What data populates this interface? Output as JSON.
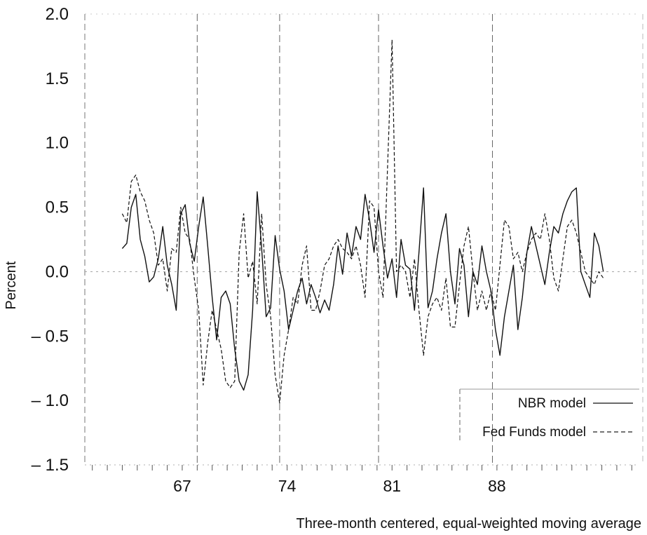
{
  "chart_data": {
    "type": "line",
    "title": "",
    "ylabel": "Percent",
    "xlabel": "Three-month centered, equal-weighted moving average",
    "xlim": [
      1960.5,
      1997.5
    ],
    "ylim": [
      -1.5,
      2.0
    ],
    "x_ticks": [
      {
        "value": 1967,
        "label": "67"
      },
      {
        "value": 1974,
        "label": "74"
      },
      {
        "value": 1981,
        "label": "81"
      },
      {
        "value": 1988,
        "label": "88"
      }
    ],
    "y_ticks": [
      {
        "value": 2.0,
        "label": "2.0"
      },
      {
        "value": 1.5,
        "label": "1.5"
      },
      {
        "value": 1.0,
        "label": "1.0"
      },
      {
        "value": 0.5,
        "label": "0.5"
      },
      {
        "value": 0.0,
        "label": "0.0"
      },
      {
        "value": -0.5,
        "label": "– 0.5"
      },
      {
        "value": -1.0,
        "label": "– 1.0"
      },
      {
        "value": -1.5,
        "label": "– 1.5"
      }
    ],
    "vertical_lines": [
      1968.0,
      1973.5,
      1980.1,
      1987.7
    ],
    "legend_position": "bottom-right",
    "series": [
      {
        "name": "NBR model",
        "style": "solid",
        "x": [
          1963.0,
          1963.3,
          1963.6,
          1963.9,
          1964.2,
          1964.5,
          1964.8,
          1965.1,
          1965.4,
          1965.7,
          1966.0,
          1966.3,
          1966.6,
          1966.9,
          1967.2,
          1967.5,
          1967.8,
          1968.1,
          1968.4,
          1968.7,
          1969.0,
          1969.3,
          1969.6,
          1969.9,
          1970.2,
          1970.5,
          1970.8,
          1971.1,
          1971.4,
          1971.7,
          1972.0,
          1972.3,
          1972.6,
          1972.9,
          1973.2,
          1973.5,
          1973.8,
          1974.1,
          1974.4,
          1974.7,
          1975.0,
          1975.3,
          1975.6,
          1975.9,
          1976.2,
          1976.5,
          1976.8,
          1977.1,
          1977.4,
          1977.7,
          1978.0,
          1978.3,
          1978.6,
          1978.9,
          1979.2,
          1979.5,
          1979.8,
          1980.1,
          1980.4,
          1980.7,
          1981.0,
          1981.3,
          1981.6,
          1981.9,
          1982.2,
          1982.5,
          1982.8,
          1983.1,
          1983.4,
          1983.7,
          1984.0,
          1984.3,
          1984.6,
          1984.9,
          1985.2,
          1985.5,
          1985.8,
          1986.1,
          1986.4,
          1986.7,
          1987.0,
          1987.3,
          1987.6,
          1987.9,
          1988.2,
          1988.5,
          1988.8,
          1989.1,
          1989.4,
          1989.7,
          1990.0,
          1990.3,
          1990.6,
          1990.9,
          1991.2,
          1991.5,
          1991.8,
          1992.1,
          1992.4,
          1992.7,
          1993.0,
          1993.3,
          1993.6,
          1993.9,
          1994.2,
          1994.5,
          1994.8,
          1995.1
        ],
        "values": [
          0.18,
          0.22,
          0.5,
          0.6,
          0.25,
          0.12,
          -0.08,
          -0.04,
          0.1,
          0.35,
          0.05,
          -0.1,
          -0.3,
          0.45,
          0.52,
          0.22,
          0.08,
          0.35,
          0.58,
          0.2,
          -0.2,
          -0.53,
          -0.2,
          -0.15,
          -0.25,
          -0.6,
          -0.85,
          -0.92,
          -0.8,
          -0.3,
          0.62,
          0.18,
          -0.35,
          -0.28,
          0.28,
          0.02,
          -0.15,
          -0.45,
          -0.3,
          -0.15,
          -0.05,
          -0.25,
          -0.1,
          -0.2,
          -0.32,
          -0.22,
          -0.3,
          -0.1,
          0.2,
          -0.02,
          0.3,
          0.12,
          0.35,
          0.25,
          0.6,
          0.4,
          0.15,
          0.48,
          0.2,
          -0.05,
          0.1,
          -0.2,
          0.25,
          0.05,
          0.02,
          -0.3,
          0.15,
          0.65,
          -0.28,
          -0.15,
          0.1,
          0.3,
          0.45,
          0.0,
          -0.25,
          0.18,
          0.05,
          -0.35,
          0.0,
          -0.1,
          0.2,
          0.0,
          -0.15,
          -0.45,
          -0.65,
          -0.35,
          -0.15,
          0.05,
          -0.45,
          -0.2,
          0.15,
          0.35,
          0.2,
          0.05,
          -0.1,
          0.15,
          0.35,
          0.3,
          0.45,
          0.55,
          0.62,
          0.65,
          0.0,
          -0.1,
          -0.2,
          0.3,
          0.2,
          0.0
        ]
      },
      {
        "name": "Fed Funds model",
        "style": "dashed",
        "x": [
          1963.0,
          1963.3,
          1963.6,
          1963.9,
          1964.2,
          1964.5,
          1964.8,
          1965.1,
          1965.4,
          1965.7,
          1966.0,
          1966.3,
          1966.6,
          1966.9,
          1967.2,
          1967.5,
          1967.8,
          1968.1,
          1968.4,
          1968.7,
          1969.0,
          1969.3,
          1969.6,
          1969.9,
          1970.2,
          1970.5,
          1970.8,
          1971.1,
          1971.4,
          1971.7,
          1972.0,
          1972.3,
          1972.6,
          1972.9,
          1973.2,
          1973.5,
          1973.8,
          1974.1,
          1974.4,
          1974.7,
          1975.0,
          1975.3,
          1975.6,
          1975.9,
          1976.2,
          1976.5,
          1976.8,
          1977.1,
          1977.4,
          1977.7,
          1978.0,
          1978.3,
          1978.6,
          1978.9,
          1979.2,
          1979.5,
          1979.8,
          1980.1,
          1980.4,
          1980.7,
          1981.0,
          1981.3,
          1981.6,
          1981.9,
          1982.2,
          1982.5,
          1982.8,
          1983.1,
          1983.4,
          1983.7,
          1984.0,
          1984.3,
          1984.6,
          1984.9,
          1985.2,
          1985.5,
          1985.8,
          1986.1,
          1986.4,
          1986.7,
          1987.0,
          1987.3,
          1987.6,
          1987.9,
          1988.2,
          1988.5,
          1988.8,
          1989.1,
          1989.4,
          1989.7,
          1990.0,
          1990.3,
          1990.6,
          1990.9,
          1991.2,
          1991.5,
          1991.8,
          1992.1,
          1992.4,
          1992.7,
          1993.0,
          1993.3,
          1993.6,
          1993.9,
          1994.2,
          1994.5,
          1994.8,
          1995.1
        ],
        "values": [
          0.45,
          0.38,
          0.7,
          0.75,
          0.62,
          0.55,
          0.4,
          0.3,
          0.05,
          0.1,
          -0.15,
          0.18,
          0.15,
          0.5,
          0.3,
          0.25,
          -0.05,
          -0.3,
          -0.88,
          -0.55,
          -0.3,
          -0.45,
          -0.6,
          -0.85,
          -0.9,
          -0.85,
          0.15,
          0.45,
          -0.05,
          0.08,
          -0.25,
          0.45,
          -0.1,
          -0.35,
          -0.8,
          -1.02,
          -0.65,
          -0.45,
          -0.2,
          -0.25,
          0.05,
          0.2,
          -0.3,
          -0.3,
          -0.15,
          0.05,
          0.1,
          0.2,
          0.25,
          0.18,
          0.15,
          0.1,
          0.2,
          0.05,
          -0.2,
          0.55,
          0.5,
          0.0,
          -0.2,
          0.8,
          1.8,
          0.0,
          0.05,
          0.0,
          -0.2,
          0.1,
          -0.3,
          -0.65,
          -0.35,
          -0.25,
          -0.2,
          -0.3,
          -0.05,
          -0.43,
          -0.43,
          -0.1,
          0.2,
          0.35,
          0.0,
          -0.3,
          -0.15,
          -0.3,
          -0.15,
          -0.3,
          0.05,
          0.4,
          0.35,
          0.1,
          0.15,
          0.0,
          0.15,
          0.25,
          0.3,
          0.25,
          0.45,
          0.25,
          -0.05,
          -0.15,
          0.1,
          0.35,
          0.4,
          0.3,
          0.15,
          0.0,
          -0.05,
          -0.1,
          0.0,
          -0.05
        ]
      }
    ]
  }
}
